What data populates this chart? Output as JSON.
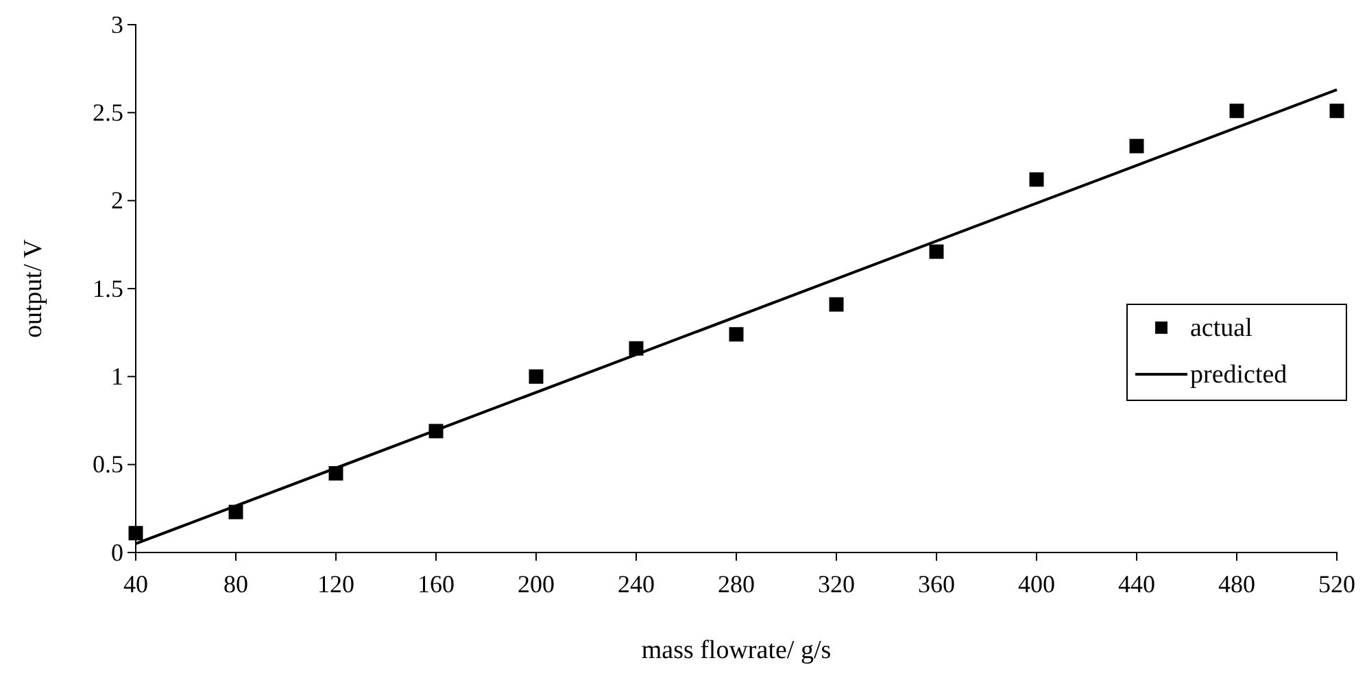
{
  "chart_data": {
    "type": "scatter",
    "xlabel": "mass flowrate/ g/s",
    "ylabel": "output/ V",
    "xlim": [
      40,
      520
    ],
    "xticks": [
      40,
      80,
      120,
      160,
      200,
      240,
      280,
      320,
      360,
      400,
      440,
      480,
      520
    ],
    "ylim": [
      0,
      3
    ],
    "yticks": [
      0,
      0.5,
      1,
      1.5,
      2,
      2.5,
      3
    ],
    "grid": false,
    "legend": "right",
    "marker": "square",
    "series": [
      {
        "name": "actual",
        "color": "#000000",
        "x": [
          40,
          80,
          120,
          160,
          200,
          240,
          280,
          320,
          360,
          400,
          440,
          480,
          520
        ],
        "values": [
          0.11,
          0.23,
          0.45,
          0.69,
          1.0,
          1.16,
          1.24,
          1.41,
          1.71,
          2.12,
          2.31,
          2.51,
          2.51
        ]
      },
      {
        "name": "predicted",
        "type": "line",
        "color": "#000000",
        "line_style": "solid",
        "marker": "none",
        "x": [
          40,
          520
        ],
        "values": [
          0.05,
          2.63
        ]
      }
    ]
  }
}
